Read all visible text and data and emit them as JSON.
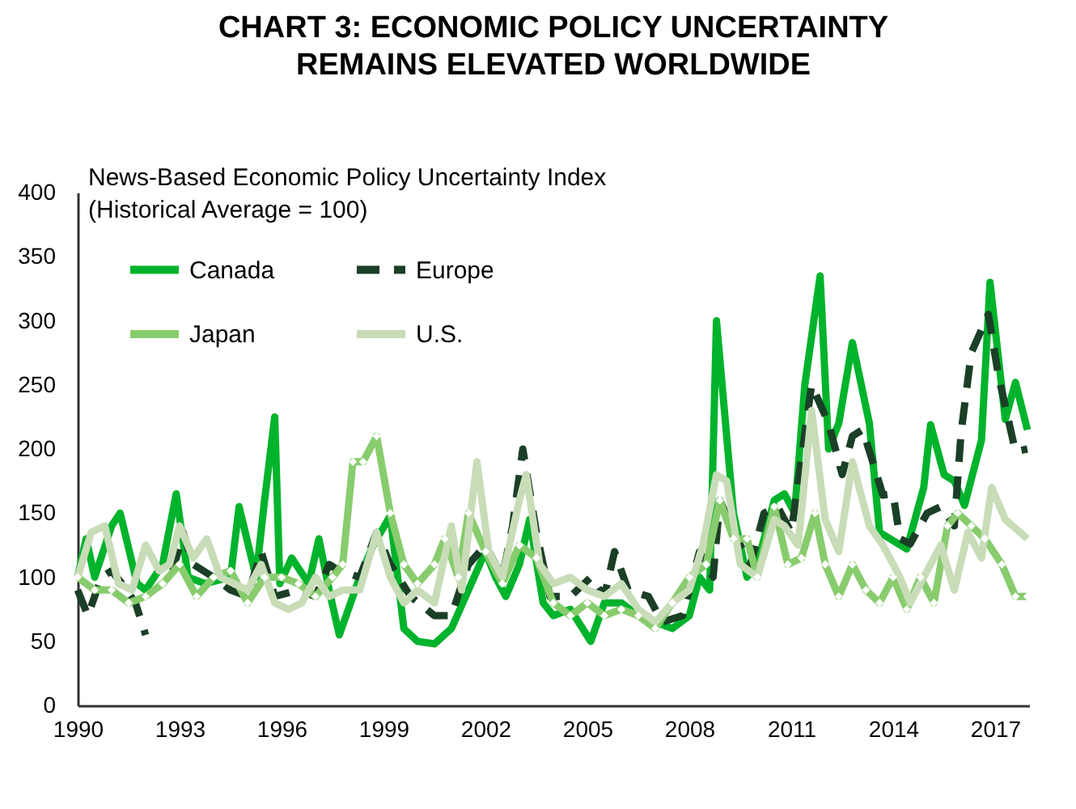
{
  "chart_data": {
    "type": "line",
    "title": "CHART 3: ECONOMIC POLICY UNCERTAINTY\nREMAINS ELEVATED WORLDWIDE",
    "ylabel": "News-Based Economic Policy Uncertainty Index\n(Historical Average = 100)",
    "xlim": [
      1990,
      2018
    ],
    "xticks": [
      1990,
      1993,
      1996,
      1999,
      2002,
      2005,
      2008,
      2011,
      2014,
      2017
    ],
    "ylim": [
      0,
      400
    ],
    "yticks": [
      0,
      50,
      100,
      150,
      200,
      250,
      300,
      350,
      400
    ],
    "grid": false,
    "legend": "top left",
    "series": [
      {
        "name": "Canada",
        "color": "#00b32c",
        "line_style": "solid",
        "x": [
          1990,
          1990.25,
          1990.5,
          1991,
          1991.25,
          1991.75,
          1992,
          1992.5,
          1992.9,
          1993.25,
          1993.75,
          1994.5,
          1994.75,
          1995.25,
          1995.5,
          1995.8,
          1995.95,
          1996.3,
          1996.8,
          1997.1,
          1997.4,
          1997.7,
          1998.3,
          1998.7,
          1999.2,
          1999.6,
          2000,
          2000.5,
          2001,
          2001.5,
          2002,
          2002.3,
          2002.6,
          2003,
          2003.3,
          2003.7,
          2004,
          2004.5,
          2005.1,
          2005.5,
          2006,
          2006.5,
          2007,
          2007.5,
          2008,
          2008.3,
          2008.6,
          2008.8,
          2009.3,
          2009.7,
          2010,
          2010.5,
          2010.8,
          2011.1,
          2011.4,
          2011.85,
          2012.1,
          2012.4,
          2012.8,
          2013.3,
          2013.6,
          2014.4,
          2014.9,
          2015.1,
          2015.5,
          2015.8,
          2016.1,
          2016.6,
          2016.85,
          2017.3,
          2017.6,
          2017.95
        ],
        "values": [
          100,
          130,
          100,
          140,
          150,
          95,
          90,
          110,
          165,
          100,
          95,
          100,
          155,
          100,
          160,
          225,
          95,
          115,
          95,
          130,
          90,
          55,
          100,
          125,
          148,
          60,
          50,
          48,
          60,
          90,
          120,
          100,
          85,
          110,
          145,
          80,
          70,
          75,
          50,
          80,
          80,
          70,
          65,
          60,
          70,
          100,
          90,
          300,
          150,
          100,
          110,
          160,
          165,
          150,
          250,
          335,
          200,
          220,
          283,
          220,
          135,
          122,
          170,
          219,
          180,
          175,
          156,
          207,
          330,
          223,
          252,
          215
        ]
      },
      {
        "name": "Europe",
        "color": "#1b3f26",
        "line_style": "dashed",
        "x": [
          1990,
          1990.3,
          1990.7,
          1991,
          1991.3,
          1991.7,
          1992,
          1992.4,
          1992.8,
          1993.1,
          1993.4,
          1994,
          1994.5,
          1995,
          1995.4,
          1995.8,
          1996.5,
          1997,
          1997.4,
          1997.7,
          1998.3,
          1998.8,
          1999.2,
          1999.8,
          2000.5,
          2001,
          2001.5,
          2002,
          2002.5,
          2002.8,
          2003.1,
          2003.5,
          2003.9,
          2004.5,
          2005.1,
          2005.5,
          2005.8,
          2006.2,
          2006.8,
          2007.2,
          2007.8,
          2008.3,
          2008.7,
          2008.9,
          2009.4,
          2009.8,
          2010.2,
          2010.6,
          2011,
          2011.6,
          2012.1,
          2012.5,
          2012.8,
          2013.1,
          2013.4,
          2013.7,
          2014,
          2014.2,
          2014.5,
          2015,
          2015.4,
          2015.8,
          2016,
          2016.3,
          2016.8,
          2017.1,
          2017.6,
          2017.95
        ],
        "values": [
          90,
          70,
          100,
          105,
          95,
          80,
          55,
          null,
          105,
          135,
          110,
          100,
          90,
          85,
          120,
          85,
          90,
          85,
          110,
          105,
          100,
          135,
          110,
          85,
          70,
          70,
          110,
          125,
          100,
          140,
          200,
          135,
          85,
          85,
          100,
          85,
          120,
          90,
          85,
          65,
          70,
          120,
          100,
          160,
          130,
          110,
          150,
          155,
          135,
          250,
          220,
          180,
          210,
          215,
          190,
          164,
          165,
          130,
          126,
          150,
          155,
          140,
          213,
          275,
          305,
          257,
          198,
          200
        ]
      },
      {
        "name": "Japan",
        "color": "#88cc6e",
        "line_style": "solid",
        "marker": "diamond",
        "x": [
          1990,
          1990.5,
          1991,
          1991.5,
          1992,
          1992.5,
          1993,
          1993.5,
          1994,
          1994.5,
          1995,
          1995.5,
          1996,
          1996.5,
          1997,
          1997.5,
          1997.8,
          1998.1,
          1998.4,
          1998.8,
          1999.2,
          1999.6,
          2000,
          2000.5,
          2000.8,
          2001.2,
          2001.5,
          2002,
          2002.5,
          2003,
          2003.5,
          2004,
          2004.5,
          2005,
          2005.5,
          2006,
          2006.5,
          2007,
          2007.5,
          2008,
          2008.5,
          2008.9,
          2009.3,
          2009.7,
          2010,
          2010.5,
          2010.9,
          2011.3,
          2011.7,
          2012,
          2012.4,
          2012.8,
          2013.2,
          2013.6,
          2014,
          2014.4,
          2014.8,
          2015.2,
          2015.6,
          2015.9,
          2016.3,
          2016.7,
          2017.2,
          2017.6,
          2017.95
        ],
        "values": [
          100,
          90,
          90,
          80,
          85,
          95,
          110,
          85,
          100,
          105,
          80,
          100,
          100,
          95,
          85,
          100,
          110,
          190,
          190,
          210,
          150,
          110,
          95,
          110,
          130,
          100,
          150,
          120,
          95,
          125,
          115,
          80,
          70,
          80,
          70,
          75,
          70,
          60,
          80,
          100,
          110,
          160,
          130,
          130,
          100,
          155,
          110,
          115,
          150,
          110,
          85,
          110,
          90,
          80,
          100,
          75,
          100,
          80,
          140,
          150,
          140,
          130,
          110,
          85,
          85
        ]
      },
      {
        "name": "U.S.",
        "color": "#c8dcb8",
        "line_style": "solid",
        "x": [
          1990,
          1990.4,
          1990.8,
          1991.2,
          1991.6,
          1992,
          1992.4,
          1992.7,
          1993,
          1993.4,
          1993.8,
          1994.2,
          1994.6,
          1995,
          1995.4,
          1995.8,
          1996.2,
          1996.6,
          1997,
          1997.4,
          1997.8,
          1998.3,
          1998.8,
          1999.2,
          1999.6,
          2000,
          2000.5,
          2001,
          2001.3,
          2001.75,
          2002.1,
          2002.5,
          2003,
          2003.2,
          2003.6,
          2004,
          2004.5,
          2005,
          2005.5,
          2006,
          2006.5,
          2007,
          2007.5,
          2008,
          2008.4,
          2008.8,
          2009.1,
          2009.5,
          2010,
          2010.5,
          2010.8,
          2011.2,
          2011.6,
          2012,
          2012.4,
          2012.8,
          2013.3,
          2013.7,
          2014.2,
          2014.5,
          2014.9,
          2015.4,
          2015.8,
          2016.2,
          2016.6,
          2016.9,
          2017.3,
          2017.95
        ],
        "values": [
          100,
          135,
          140,
          95,
          90,
          125,
          105,
          110,
          140,
          115,
          130,
          100,
          95,
          90,
          110,
          80,
          75,
          80,
          100,
          85,
          90,
          90,
          135,
          100,
          80,
          90,
          80,
          140,
          90,
          190,
          120,
          100,
          160,
          180,
          110,
          95,
          100,
          90,
          85,
          95,
          75,
          65,
          80,
          90,
          125,
          180,
          175,
          110,
          100,
          145,
          140,
          125,
          230,
          145,
          120,
          190,
          140,
          125,
          100,
          80,
          100,
          125,
          90,
          135,
          115,
          170,
          145,
          130
        ]
      }
    ]
  }
}
